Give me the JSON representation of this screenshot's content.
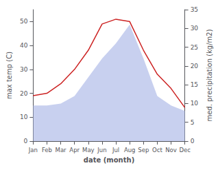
{
  "chart_data": {
    "type": "line",
    "categories": [
      "Jan",
      "Feb",
      "Mar",
      "Apr",
      "May",
      "Jun",
      "Jul",
      "Aug",
      "Sep",
      "Oct",
      "Nov",
      "Dec"
    ],
    "xlabel": "date (month)",
    "ylabel": "max temp (C)",
    "y2label": "med. precipitation (kg/m2)",
    "series": [
      {
        "type": "area",
        "axis": "y2",
        "color": "#b0bce8",
        "values": [
          9.5,
          9.5,
          10,
          12,
          17,
          22,
          26,
          31,
          22,
          12,
          9.5,
          8
        ]
      },
      {
        "type": "line",
        "color": "#cc2222",
        "values": [
          19,
          20,
          24,
          30,
          38,
          49,
          51,
          50,
          38,
          28,
          22,
          14
        ]
      }
    ],
    "ylim": [
      0,
      55
    ],
    "yticks": [
      0,
      10,
      20,
      30,
      40,
      50
    ],
    "y2lim": [
      0,
      35
    ],
    "y2ticks": [
      0,
      5,
      10,
      15,
      20,
      25,
      30,
      35
    ],
    "grid": false
  }
}
